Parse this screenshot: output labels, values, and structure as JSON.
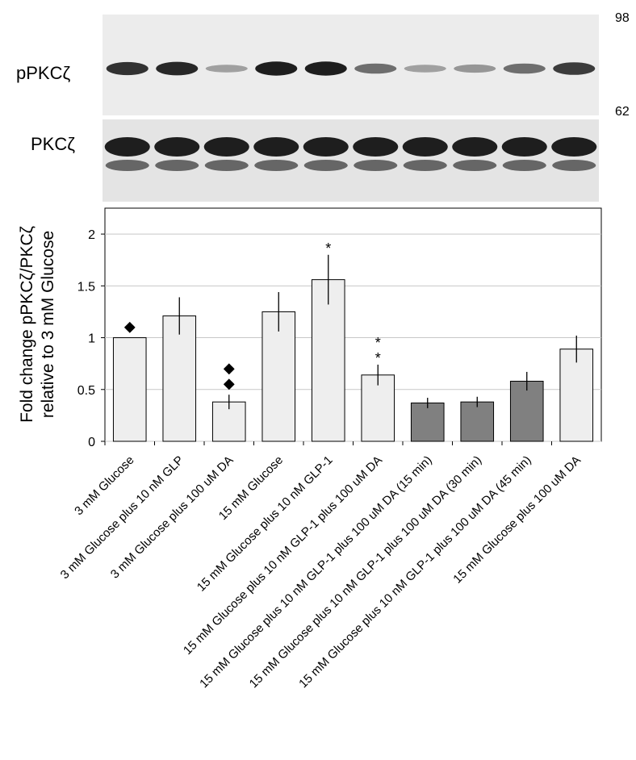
{
  "blot_labels": {
    "top": "pPKCζ",
    "bottom": "PKCζ",
    "marker_high": "98",
    "marker_low": "62"
  },
  "chart_data": {
    "type": "bar",
    "ylabel": [
      "Fold change pPKCζ/PKCζ",
      "relative to 3 mM Glucose"
    ],
    "categories": [
      "3 mM Glucose",
      "3 mM Glucose plus 10 nM GLP",
      "3 mM Glucose plus 100 uM DA",
      "15 mM Glucose",
      "15 mM Glucose plus 10 nM GLP-1",
      "15 mM Glucose plus 10 nM GLP-1 plus 100 uM DA",
      "15 mM Glucose plus 10 nM GLP-1 plus 100 uM DA (15 min)",
      "15 mM Glucose plus 10 nM GLP-1 plus 100 uM DA (30 min)",
      "15 mM Glucose plus 10 nM GLP-1 plus 100 uM DA (45 min)",
      "15 mM Glucose plus 100 uM DA"
    ],
    "values": [
      1.0,
      1.21,
      0.38,
      1.25,
      1.56,
      0.64,
      0.37,
      0.38,
      0.58,
      0.89
    ],
    "errors": [
      null,
      0.18,
      0.07,
      0.19,
      0.24,
      0.1,
      0.05,
      0.05,
      0.09,
      0.13
    ],
    "colors": [
      "#eeeeee",
      "#eeeeee",
      "#eeeeee",
      "#eeeeee",
      "#eeeeee",
      "#eeeeee",
      "#808080",
      "#808080",
      "#808080",
      "#eeeeee"
    ],
    "markers": [
      "◆",
      null,
      "◆◆",
      null,
      "*",
      "**",
      null,
      null,
      null,
      null
    ],
    "ylim": [
      0,
      2.25
    ],
    "yticks": [
      0,
      0.5,
      1,
      1.5,
      2
    ],
    "grid": true
  }
}
